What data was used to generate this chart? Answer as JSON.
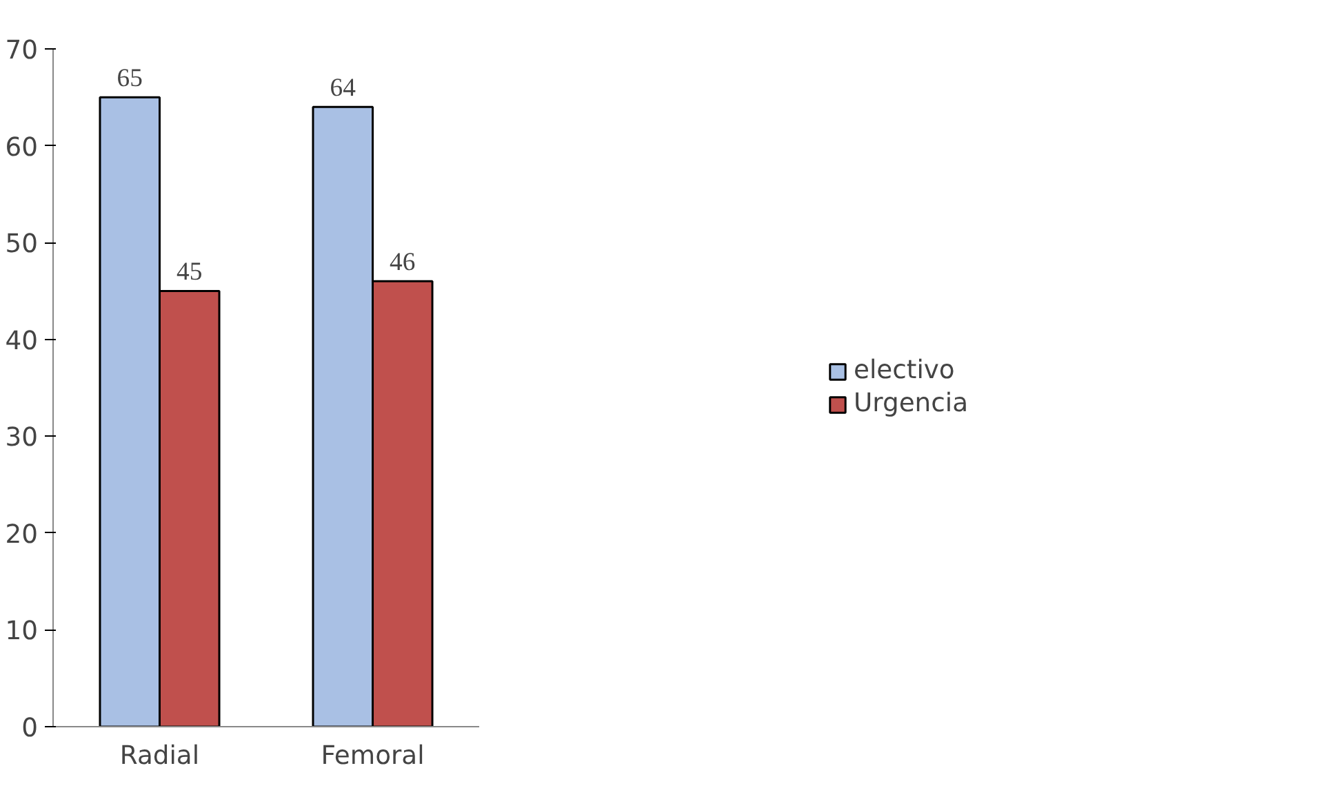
{
  "chart_data": {
    "type": "bar",
    "categories": [
      "Radial",
      "Femoral"
    ],
    "series": [
      {
        "name": "electivo",
        "color": "#a9c0e4",
        "values": [
          65,
          64
        ]
      },
      {
        "name": "Urgencia",
        "color": "#c0504d",
        "values": [
          45,
          46
        ]
      }
    ],
    "ylim": [
      0,
      70
    ],
    "yticks": [
      0,
      10,
      20,
      30,
      40,
      50,
      60,
      70
    ],
    "grid": false,
    "legend": "right",
    "data_labels": true
  }
}
